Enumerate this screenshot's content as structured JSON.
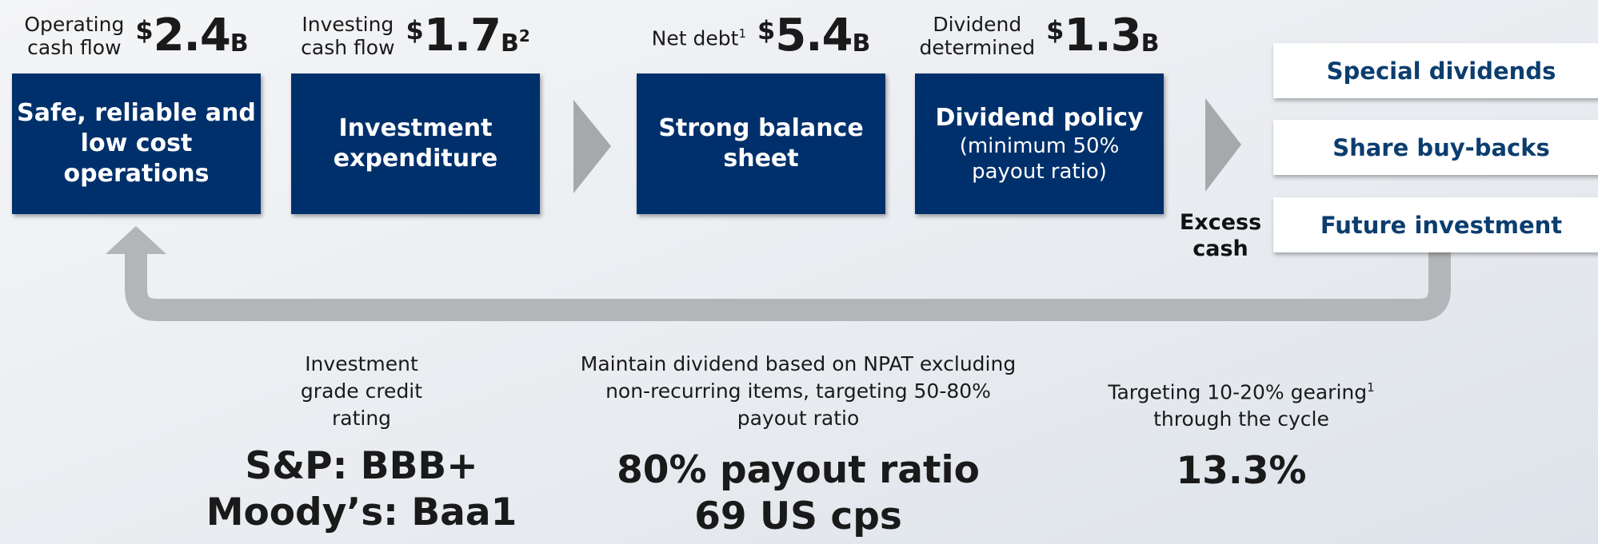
{
  "steps": [
    {
      "label": [
        "Operating",
        "cash flow"
      ],
      "currency": "$",
      "amount": "2.4",
      "unit": "B",
      "title": [
        "Safe, reliable and",
        "low cost",
        "operations"
      ]
    },
    {
      "label": [
        "Investing",
        "cash flow"
      ],
      "currency": "$",
      "amount": "1.7",
      "unit": "B",
      "unit_footnote": "2",
      "title": [
        "Investment",
        "expenditure"
      ]
    },
    {
      "label": [
        "Net debt"
      ],
      "label_footnote": "1",
      "currency": "$",
      "amount": "5.4",
      "unit": "B",
      "title": [
        "Strong balance",
        "sheet"
      ]
    },
    {
      "label": [
        "Dividend",
        "determined"
      ],
      "currency": "$",
      "amount": "1.3",
      "unit": "B",
      "title": [
        "Dividend policy"
      ],
      "subtitle": [
        "(minimum 50%",
        "payout ratio)"
      ]
    }
  ],
  "excess_cash": [
    "Excess",
    "cash"
  ],
  "options": [
    "Special dividends",
    "Share buy-backs",
    "Future investment"
  ],
  "outcomes": [
    {
      "description": [
        "Investment",
        "grade credit",
        "rating"
      ],
      "highlights": [
        "S&P: BBB+",
        "Moody’s: Baa1"
      ]
    },
    {
      "description": [
        "Maintain dividend based on NPAT excluding",
        "non-recurring items, targeting 50-80%",
        "payout ratio"
      ],
      "highlights": [
        "80% payout ratio",
        "69 US cps"
      ]
    },
    {
      "description": [
        "Targeting 10-20% gearing"
      ],
      "description_footnote": "1",
      "description_cont": [
        "through the cycle"
      ],
      "highlights": [
        "13.3%"
      ]
    }
  ]
}
